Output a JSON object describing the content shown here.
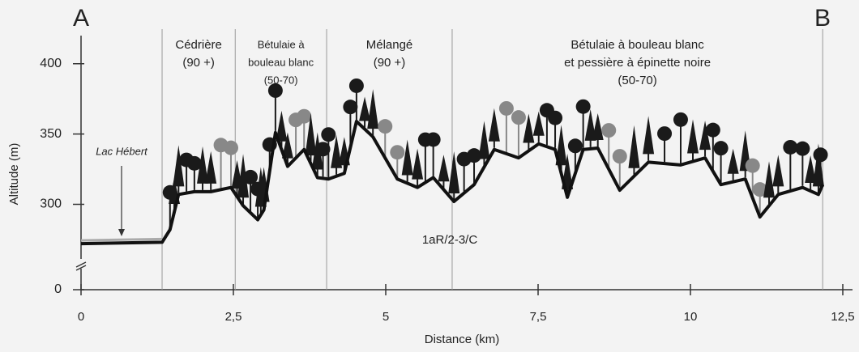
{
  "chart_data": {
    "type": "line",
    "start_label": "A",
    "end_label": "B",
    "xlabel": "Distance (km)",
    "ylabel": "Altitude (m)",
    "lake_label": "Lac Hébert",
    "soil_label": "1aR/2-3/C",
    "x": [
      0,
      1.33,
      1.46,
      1.6,
      1.86,
      2.13,
      2.46,
      2.66,
      2.9,
      3.0,
      3.19,
      3.39,
      3.66,
      3.88,
      4.06,
      4.32,
      4.52,
      4.79,
      5.19,
      5.52,
      5.78,
      6.12,
      6.45,
      6.78,
      7.18,
      7.51,
      7.78,
      7.98,
      8.24,
      8.48,
      8.84,
      9.31,
      9.84,
      10.24,
      10.5,
      10.9,
      11.14,
      11.44,
      11.84,
      12.1,
      12.17
    ],
    "values": [
      272,
      273,
      282,
      307,
      309,
      309,
      312,
      299,
      289,
      296,
      351,
      327,
      339,
      319,
      318,
      322,
      359,
      348,
      318,
      312,
      319,
      302,
      314,
      339,
      333,
      343,
      339,
      305,
      339,
      340,
      310,
      330,
      328,
      333,
      314,
      318,
      291,
      307,
      312,
      307,
      314
    ],
    "color": "#111111",
    "xlim": [
      0,
      12.5
    ],
    "xticks": [
      0,
      {
        "value": 2.5,
        "label": "2,5"
      },
      5,
      {
        "value": 7.5,
        "label": "7,5"
      },
      10,
      {
        "value": 12.5,
        "label": "12,5"
      }
    ],
    "ylim": [
      0,
      420
    ],
    "yticks": [
      0,
      300,
      350,
      400
    ],
    "ybreak": 260,
    "dividers": [
      1.33,
      2.53,
      4.03,
      6.09,
      12.17
    ],
    "zones": [
      [
        "Cédrière",
        "(90 +)"
      ],
      [
        "Bétulaie à",
        "bouleau blanc",
        "(50-70)"
      ],
      [
        "Mélangé",
        "(90 +)"
      ],
      [
        "Bétulaie à bouleau blanc",
        "et pessière à épinette noire",
        "(50-70)"
      ]
    ]
  }
}
